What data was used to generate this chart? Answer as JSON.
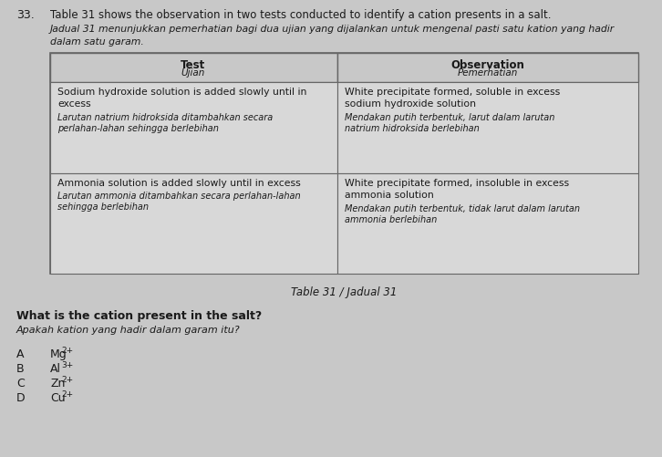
{
  "question_number": "33.",
  "question_text_en": "Table 31 shows the observation in two tests conducted to identify a cation presents in a salt.",
  "question_text_ms_line1": "Jadual 31 menunjukkan pemerhatian bagi dua ujian yang dijalankan untuk mengenal pasti satu kation yang hadir",
  "question_text_ms_line2": "dalam satu garam.",
  "table_caption": "Table 31 / Jadual 31",
  "col_headers": [
    [
      "Test",
      "Ujian"
    ],
    [
      "Observation",
      "Pemerhatian"
    ]
  ],
  "rows": [
    {
      "test_line1": "Sodium hydroxide solution is added slowly until in",
      "test_line2": "excess",
      "test_ms": "Larutan natrium hidroksida ditambahkan secara\nperlahan-lahan sehingga berlebihan",
      "obs_line1": "White precipitate formed, soluble in excess",
      "obs_line2": "sodium hydroxide solution",
      "obs_ms": "Mendakan putih terbentuk, larut dalam larutan\nnatrium hidroksida berlebihan"
    },
    {
      "test_line1": "Ammonia solution is added slowly until in excess",
      "test_line2": "",
      "test_ms": "Larutan ammonia ditambahkan secara perlahan-lahan\nsehingga berlebihan",
      "obs_line1": "White precipitate formed, insoluble in excess",
      "obs_line2": "ammonia solution",
      "obs_ms": "Mendakan putih terbentuk, tidak larut dalam larutan\nammonia berlebihan"
    }
  ],
  "question2_en": "What is the cation present in the salt?",
  "question2_ms": "Apakah kation yang hadir dalam garam itu?",
  "options": [
    {
      "label": "A",
      "text": "Mg",
      "superscript": "2+"
    },
    {
      "label": "B",
      "text": "Al",
      "superscript": "3+"
    },
    {
      "label": "C",
      "text": "Zn",
      "superscript": "2+"
    },
    {
      "label": "D",
      "text": "Cu",
      "superscript": "2+"
    }
  ],
  "bg_color": "#c8c8c8",
  "cell_color": "#d8d8d8",
  "header_color": "#c8c8c8",
  "text_color": "#1a1a1a",
  "border_color": "#666666"
}
